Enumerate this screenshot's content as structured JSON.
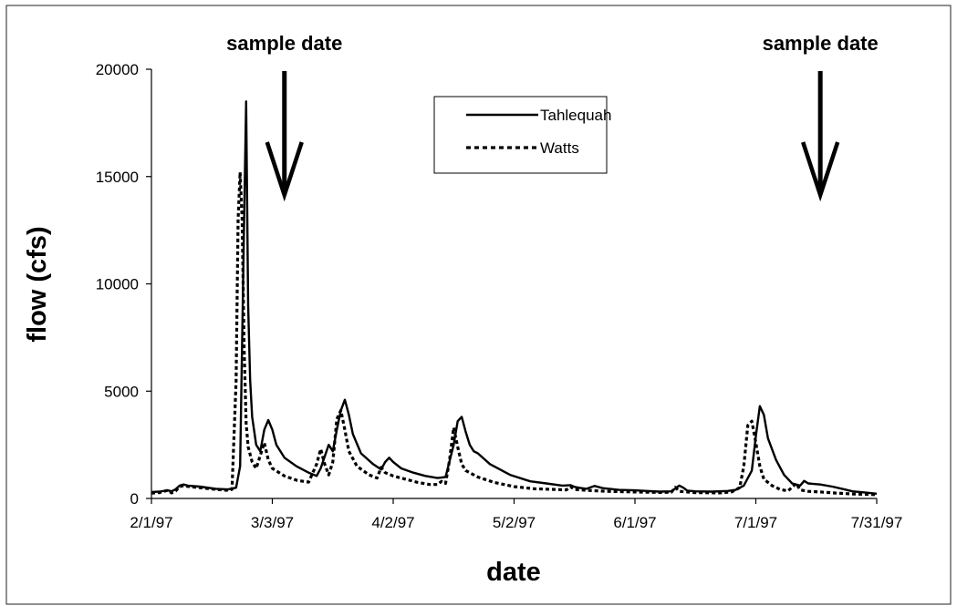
{
  "chart_data": {
    "type": "line",
    "title": "",
    "xlabel": "date",
    "ylabel": "flow (cfs)",
    "x_axis": "date",
    "xlim": [
      "1997-02-01",
      "1997-07-31"
    ],
    "x_ticks": [
      "2/1/97",
      "3/3/97",
      "4/2/97",
      "5/2/97",
      "6/1/97",
      "7/1/97",
      "7/31/97"
    ],
    "ylim": [
      0,
      20000
    ],
    "y_ticks": [
      "0",
      "5000",
      "10000",
      "15000",
      "20000"
    ],
    "grid": false,
    "legend_position": "top-center",
    "annotations": [
      {
        "text": "sample date",
        "x": "1997-03-06"
      },
      {
        "text": "sample date",
        "x": "1997-07-17"
      }
    ],
    "series": [
      {
        "name": "Tahlequah",
        "style": "solid",
        "points": [
          [
            "1997-02-01",
            300
          ],
          [
            "1997-02-03",
            320
          ],
          [
            "1997-02-05",
            380
          ],
          [
            "1997-02-06",
            330
          ],
          [
            "1997-02-07",
            430
          ],
          [
            "1997-02-08",
            600
          ],
          [
            "1997-02-09",
            650
          ],
          [
            "1997-02-10",
            600
          ],
          [
            "1997-02-13",
            550
          ],
          [
            "1997-02-17",
            450
          ],
          [
            "1997-02-20",
            420
          ],
          [
            "1997-02-22",
            500
          ],
          [
            "1997-02-23",
            1500
          ],
          [
            "1997-02-24",
            13000
          ],
          [
            "1997-02-24T12:00",
            18500
          ],
          [
            "1997-02-25",
            9000
          ],
          [
            "1997-02-25T12:00",
            5500
          ],
          [
            "1997-02-26",
            3800
          ],
          [
            "1997-02-27",
            2500
          ],
          [
            "1997-02-28",
            2200
          ],
          [
            "1997-03-01",
            3200
          ],
          [
            "1997-03-02",
            3650
          ],
          [
            "1997-03-03",
            3200
          ],
          [
            "1997-03-04",
            2500
          ],
          [
            "1997-03-06",
            1900
          ],
          [
            "1997-03-09",
            1500
          ],
          [
            "1997-03-12",
            1200
          ],
          [
            "1997-03-14",
            1050
          ],
          [
            "1997-03-15",
            1400
          ],
          [
            "1997-03-17",
            2500
          ],
          [
            "1997-03-18",
            2200
          ],
          [
            "1997-03-19",
            3200
          ],
          [
            "1997-03-20",
            4100
          ],
          [
            "1997-03-21",
            4600
          ],
          [
            "1997-03-22",
            3900
          ],
          [
            "1997-03-23",
            3000
          ],
          [
            "1997-03-25",
            2100
          ],
          [
            "1997-03-28",
            1600
          ],
          [
            "1997-03-30",
            1350
          ],
          [
            "1997-03-31",
            1700
          ],
          [
            "1997-04-01",
            1900
          ],
          [
            "1997-04-02",
            1700
          ],
          [
            "1997-04-04",
            1400
          ],
          [
            "1997-04-07",
            1200
          ],
          [
            "1997-04-10",
            1050
          ],
          [
            "1997-04-13",
            950
          ],
          [
            "1997-04-15",
            1000
          ],
          [
            "1997-04-17",
            2500
          ],
          [
            "1997-04-18",
            3600
          ],
          [
            "1997-04-19",
            3800
          ],
          [
            "1997-04-20",
            3100
          ],
          [
            "1997-04-21",
            2500
          ],
          [
            "1997-04-22",
            2200
          ],
          [
            "1997-04-23",
            2100
          ],
          [
            "1997-04-26",
            1600
          ],
          [
            "1997-05-01",
            1100
          ],
          [
            "1997-05-06",
            800
          ],
          [
            "1997-05-10",
            700
          ],
          [
            "1997-05-14",
            600
          ],
          [
            "1997-05-16",
            620
          ],
          [
            "1997-05-17",
            540
          ],
          [
            "1997-05-18",
            500
          ],
          [
            "1997-05-20",
            450
          ],
          [
            "1997-05-22",
            580
          ],
          [
            "1997-05-24",
            480
          ],
          [
            "1997-05-28",
            400
          ],
          [
            "1997-06-01",
            380
          ],
          [
            "1997-06-04",
            350
          ],
          [
            "1997-06-07",
            320
          ],
          [
            "1997-06-10",
            330
          ],
          [
            "1997-06-12",
            600
          ],
          [
            "1997-06-13",
            500
          ],
          [
            "1997-06-14",
            360
          ],
          [
            "1997-06-16",
            330
          ],
          [
            "1997-06-20",
            320
          ],
          [
            "1997-06-24",
            350
          ],
          [
            "1997-06-26",
            400
          ],
          [
            "1997-06-28",
            600
          ],
          [
            "1997-06-30",
            1300
          ],
          [
            "1997-07-01",
            2900
          ],
          [
            "1997-07-02",
            4300
          ],
          [
            "1997-07-03",
            3900
          ],
          [
            "1997-07-04",
            2800
          ],
          [
            "1997-07-06",
            1800
          ],
          [
            "1997-07-08",
            1100
          ],
          [
            "1997-07-10",
            700
          ],
          [
            "1997-07-12",
            600
          ],
          [
            "1997-07-13",
            820
          ],
          [
            "1997-07-14",
            700
          ],
          [
            "1997-07-17",
            650
          ],
          [
            "1997-07-20",
            550
          ],
          [
            "1997-07-23",
            420
          ],
          [
            "1997-07-25",
            330
          ],
          [
            "1997-07-28",
            280
          ],
          [
            "1997-07-31",
            220
          ]
        ]
      },
      {
        "name": "Watts",
        "style": "dotted",
        "points": [
          [
            "1997-02-01",
            250
          ],
          [
            "1997-02-03",
            270
          ],
          [
            "1997-02-05",
            380
          ],
          [
            "1997-02-06",
            260
          ],
          [
            "1997-02-07",
            350
          ],
          [
            "1997-02-08",
            550
          ],
          [
            "1997-02-09",
            600
          ],
          [
            "1997-02-10",
            560
          ],
          [
            "1997-02-13",
            500
          ],
          [
            "1997-02-17",
            420
          ],
          [
            "1997-02-20",
            380
          ],
          [
            "1997-02-21",
            420
          ],
          [
            "1997-02-22",
            5500
          ],
          [
            "1997-02-22T12:00",
            13000
          ],
          [
            "1997-02-23",
            15200
          ],
          [
            "1997-02-23T12:00",
            13000
          ],
          [
            "1997-02-24",
            7000
          ],
          [
            "1997-02-24T12:00",
            3500
          ],
          [
            "1997-02-25",
            2400
          ],
          [
            "1997-02-26",
            1700
          ],
          [
            "1997-02-27",
            1400
          ],
          [
            "1997-02-28",
            2000
          ],
          [
            "1997-03-01",
            2600
          ],
          [
            "1997-03-02",
            1800
          ],
          [
            "1997-03-03",
            1400
          ],
          [
            "1997-03-06",
            1050
          ],
          [
            "1997-03-09",
            850
          ],
          [
            "1997-03-12",
            760
          ],
          [
            "1997-03-14",
            1600
          ],
          [
            "1997-03-15",
            2300
          ],
          [
            "1997-03-16",
            1600
          ],
          [
            "1997-03-17",
            1100
          ],
          [
            "1997-03-18",
            1700
          ],
          [
            "1997-03-19",
            3700
          ],
          [
            "1997-03-20",
            4100
          ],
          [
            "1997-03-21",
            3200
          ],
          [
            "1997-03-22",
            2200
          ],
          [
            "1997-03-24",
            1500
          ],
          [
            "1997-03-27",
            1100
          ],
          [
            "1997-03-29",
            950
          ],
          [
            "1997-03-30",
            1450
          ],
          [
            "1997-03-31",
            1200
          ],
          [
            "1997-04-02",
            1050
          ],
          [
            "1997-04-05",
            900
          ],
          [
            "1997-04-08",
            750
          ],
          [
            "1997-04-11",
            650
          ],
          [
            "1997-04-13",
            650
          ],
          [
            "1997-04-14",
            800
          ],
          [
            "1997-04-15",
            700
          ],
          [
            "1997-04-16",
            1800
          ],
          [
            "1997-04-17",
            3300
          ],
          [
            "1997-04-18",
            2400
          ],
          [
            "1997-04-19",
            1600
          ],
          [
            "1997-04-20",
            1300
          ],
          [
            "1997-04-23",
            1000
          ],
          [
            "1997-04-27",
            750
          ],
          [
            "1997-05-02",
            550
          ],
          [
            "1997-05-07",
            450
          ],
          [
            "1997-05-12",
            420
          ],
          [
            "1997-05-15",
            400
          ],
          [
            "1997-05-16",
            550
          ],
          [
            "1997-05-17",
            420
          ],
          [
            "1997-05-20",
            380
          ],
          [
            "1997-05-25",
            330
          ],
          [
            "1997-06-01",
            300
          ],
          [
            "1997-06-07",
            280
          ],
          [
            "1997-06-10",
            290
          ],
          [
            "1997-06-11",
            520
          ],
          [
            "1997-06-12",
            330
          ],
          [
            "1997-06-16",
            270
          ],
          [
            "1997-06-22",
            260
          ],
          [
            "1997-06-25",
            300
          ],
          [
            "1997-06-27",
            500
          ],
          [
            "1997-06-28",
            1500
          ],
          [
            "1997-06-29",
            3400
          ],
          [
            "1997-06-30",
            3600
          ],
          [
            "1997-07-01",
            2600
          ],
          [
            "1997-07-02",
            1500
          ],
          [
            "1997-07-03",
            900
          ],
          [
            "1997-07-05",
            600
          ],
          [
            "1997-07-07",
            420
          ],
          [
            "1997-07-09",
            350
          ],
          [
            "1997-07-11",
            700
          ],
          [
            "1997-07-12",
            400
          ],
          [
            "1997-07-14",
            330
          ],
          [
            "1997-07-17",
            300
          ],
          [
            "1997-07-21",
            250
          ],
          [
            "1997-07-25",
            210
          ],
          [
            "1997-07-31",
            180
          ]
        ]
      }
    ]
  }
}
